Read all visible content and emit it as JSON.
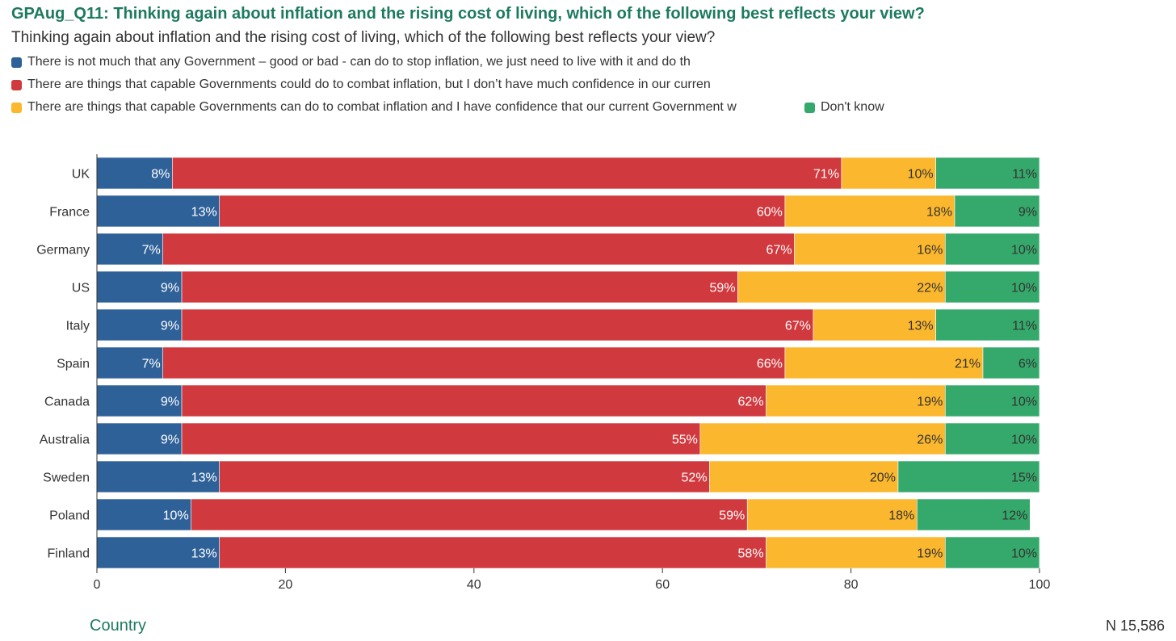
{
  "chart_data": {
    "type": "bar",
    "orientation": "horizontal",
    "stacked": true,
    "title": "GPAug_Q11: Thinking again about inflation and the rising cost of living, which of the following best reflects your view?",
    "subtitle": "Thinking again about inflation and the rising cost of living, which of the following best reflects your view?",
    "xlabel": "Country",
    "n_label": "N 15,586",
    "xlim": [
      0,
      100
    ],
    "x_ticks": [
      0,
      20,
      40,
      60,
      80,
      100
    ],
    "grid": false,
    "legend_position": "top-left",
    "categories": [
      "UK",
      "France",
      "Germany",
      "US",
      "Italy",
      "Spain",
      "Canada",
      "Australia",
      "Sweden",
      "Poland",
      "Finland"
    ],
    "series": [
      {
        "name": "There is not much that any Government – good or bad - can do to stop inflation, we just need to live with it and do th",
        "color": "#2f6199",
        "label_color": "#ffffff",
        "values": [
          8,
          13,
          7,
          9,
          9,
          7,
          9,
          9,
          13,
          10,
          13
        ]
      },
      {
        "name": "There are things that capable Governments could do to combat inflation, but I don’t have much confidence in our curren",
        "color": "#d0393e",
        "label_color": "#ffffff",
        "values": [
          71,
          60,
          67,
          59,
          67,
          66,
          62,
          55,
          52,
          59,
          58
        ]
      },
      {
        "name": "There are things that capable Governments can do to combat inflation and I have confidence that our current Government w",
        "color": "#fbb72d",
        "label_color": "#333333",
        "values": [
          10,
          18,
          16,
          22,
          13,
          21,
          19,
          26,
          20,
          18,
          19
        ]
      },
      {
        "name": "Don't know",
        "color": "#35a96b",
        "label_color": "#333333",
        "values": [
          11,
          9,
          10,
          10,
          11,
          6,
          10,
          10,
          15,
          12,
          10
        ]
      }
    ]
  }
}
